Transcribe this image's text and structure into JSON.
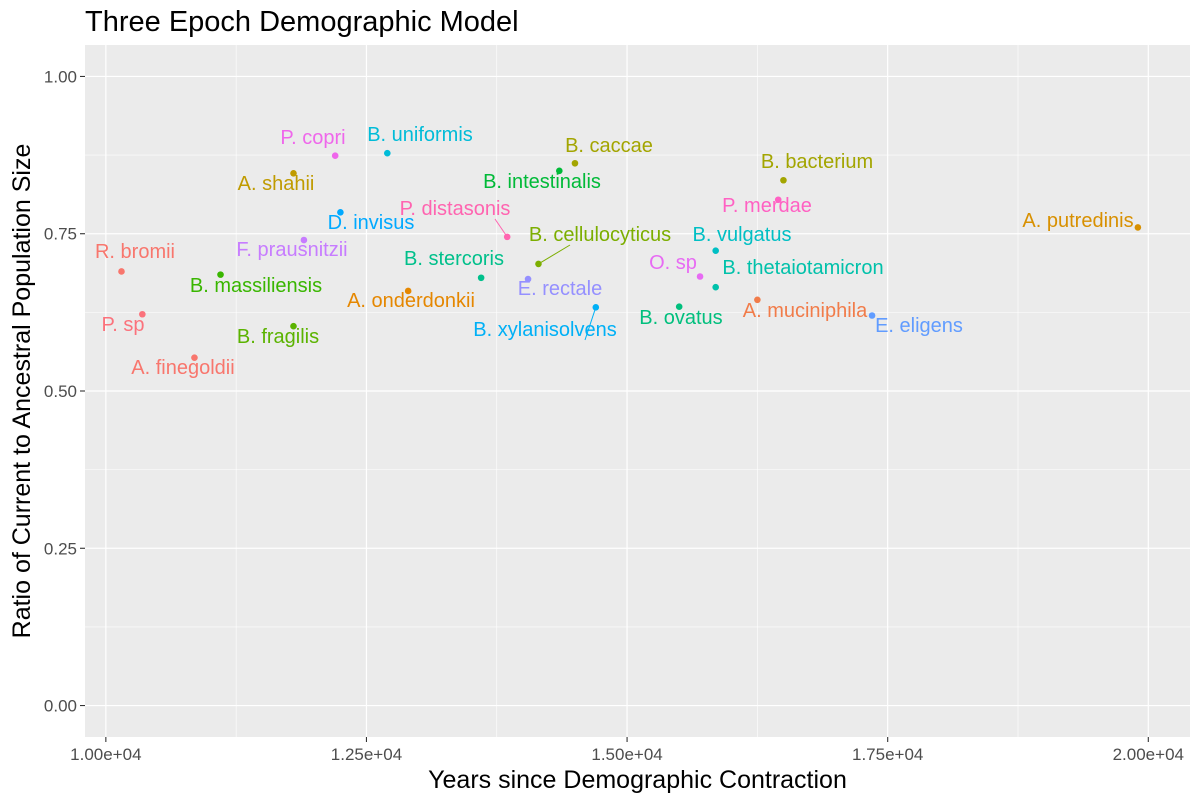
{
  "chart_data": {
    "type": "scatter",
    "title": "Three Epoch Demographic Model",
    "xlabel": "Years since Demographic Contraction",
    "ylabel": "Ratio of Current to Ancestral Population Size",
    "xlim": [
      9800,
      20400
    ],
    "ylim": [
      -0.05,
      1.05
    ],
    "x_ticks": [
      10000,
      12500,
      15000,
      17500,
      20000
    ],
    "x_tick_labels": [
      "1.00e+04",
      "1.25e+04",
      "1.50e+04",
      "1.75e+04",
      "2.00e+04"
    ],
    "y_ticks": [
      0,
      0.25,
      0.5,
      0.75,
      1.0
    ],
    "y_tick_labels": [
      "0.00",
      "0.25",
      "0.50",
      "0.75",
      "1.00"
    ],
    "grid": true,
    "legend": "none",
    "panel_background": "#EBEBEB",
    "grid_color": "#FFFFFF",
    "points": [
      {
        "label": "A. putredinis",
        "x": 19900,
        "y": 0.76,
        "color": "#D89000"
      },
      {
        "label": "P. copri",
        "x": 12200,
        "y": 0.874,
        "color": "#EF67EB"
      },
      {
        "label": "B. uniformis",
        "x": 12700,
        "y": 0.878,
        "color": "#00BCD8"
      },
      {
        "label": "B. caccae",
        "x": 14500,
        "y": 0.862,
        "color": "#A3A500"
      },
      {
        "label": "B. bacterium",
        "x": 16500,
        "y": 0.835,
        "color": "#A3A500"
      },
      {
        "label": "A. shahii",
        "x": 11800,
        "y": 0.846,
        "color": "#C09B00"
      },
      {
        "label": "B. intestinalis",
        "x": 14350,
        "y": 0.85,
        "color": "#00BA38"
      },
      {
        "label": "P. merdae",
        "x": 16450,
        "y": 0.804,
        "color": "#FF61C3"
      },
      {
        "label": "P. distasonis",
        "x": 13850,
        "y": 0.745,
        "color": "#FF64B0"
      },
      {
        "label": "D. invisus",
        "x": 12250,
        "y": 0.784,
        "color": "#00A9FF"
      },
      {
        "label": "F. prausnitzii",
        "x": 11900,
        "y": 0.74,
        "color": "#C77CFF"
      },
      {
        "label": "B. cellulocyticus",
        "x": 14150,
        "y": 0.702,
        "color": "#7CAE00"
      },
      {
        "label": "B. vulgatus",
        "x": 15850,
        "y": 0.723,
        "color": "#00BFC4"
      },
      {
        "label": "R. bromii",
        "x": 10150,
        "y": 0.69,
        "color": "#F8766D"
      },
      {
        "label": "B. stercoris",
        "x": 13600,
        "y": 0.68,
        "color": "#00C08B"
      },
      {
        "label": "E. rectale",
        "x": 14050,
        "y": 0.678,
        "color": "#9590FF"
      },
      {
        "label": "O. sp",
        "x": 15700,
        "y": 0.682,
        "color": "#E76BF3"
      },
      {
        "label": "B. thetaiotamicron",
        "x": 15850,
        "y": 0.665,
        "color": "#00C1AA"
      },
      {
        "label": "B. massiliensis",
        "x": 11100,
        "y": 0.685,
        "color": "#39B600"
      },
      {
        "label": "A. onderdonkii",
        "x": 12900,
        "y": 0.659,
        "color": "#E58700"
      },
      {
        "label": "B. xylanisolvens",
        "x": 14700,
        "y": 0.633,
        "color": "#00B0F6"
      },
      {
        "label": "B. ovatus",
        "x": 15500,
        "y": 0.634,
        "color": "#00BF7D"
      },
      {
        "label": "A. muciniphila",
        "x": 16250,
        "y": 0.645,
        "color": "#F17C4A"
      },
      {
        "label": "E. eligens",
        "x": 17350,
        "y": 0.62,
        "color": "#619CFF"
      },
      {
        "label": "P. sp",
        "x": 10350,
        "y": 0.622,
        "color": "#FB727C"
      },
      {
        "label": "B. fragilis",
        "x": 11800,
        "y": 0.603,
        "color": "#5BB300"
      },
      {
        "label": "A. finegoldii",
        "x": 10850,
        "y": 0.553,
        "color": "#F8766D"
      }
    ]
  }
}
